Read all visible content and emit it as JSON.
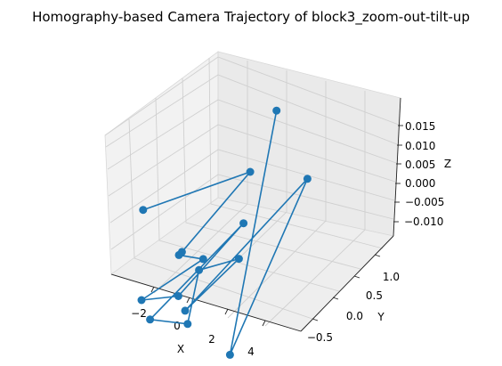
{
  "chart_data": {
    "type": "line3d",
    "title": "Homography-based Camera Trajectory of block3_zoom-out-tilt-up",
    "xlabel": "X",
    "ylabel": "Y",
    "zlabel": "Z",
    "x_ticks": [
      "−2",
      "0",
      "2",
      "4"
    ],
    "y_ticks": [
      "−0.5",
      "0.0",
      "0.5",
      "1.0"
    ],
    "z_ticks": [
      "−0.010",
      "−0.005",
      "0.000",
      "0.005",
      "0.010",
      "0.015"
    ],
    "grid": true,
    "marker": "circle",
    "series": [
      {
        "color": "#1f77b4",
        "points": [
          {
            "x": -2.9,
            "y": 0.0,
            "z": 0.0
          },
          {
            "x": 1.9,
            "y": 0.3,
            "z": 0.012
          },
          {
            "x": -0.4,
            "y": -0.1,
            "z": -0.005
          },
          {
            "x": -0.2,
            "y": -0.2,
            "z": -0.004
          },
          {
            "x": 1.5,
            "y": -0.3,
            "z": -0.001
          },
          {
            "x": -0.8,
            "y": -0.6,
            "z": -0.01
          },
          {
            "x": 0.5,
            "y": -0.4,
            "z": -0.01
          },
          {
            "x": 1.9,
            "y": 0.2,
            "z": 0.001
          },
          {
            "x": 0.4,
            "y": -0.8,
            "z": -0.01
          },
          {
            "x": 2.1,
            "y": -0.7,
            "z": -0.01
          },
          {
            "x": 2.0,
            "y": -0.5,
            "z": 0.0
          },
          {
            "x": 3.1,
            "y": -0.2,
            "z": 0.0
          },
          {
            "x": 1.6,
            "y": -0.6,
            "z": -0.009
          },
          {
            "x": 2.5,
            "y": 1.0,
            "z": 0.001
          },
          {
            "x": 4.8,
            "y": -0.8,
            "z": -0.012
          },
          {
            "x": 0.8,
            "y": 1.0,
            "z": 0.015
          }
        ]
      }
    ]
  }
}
